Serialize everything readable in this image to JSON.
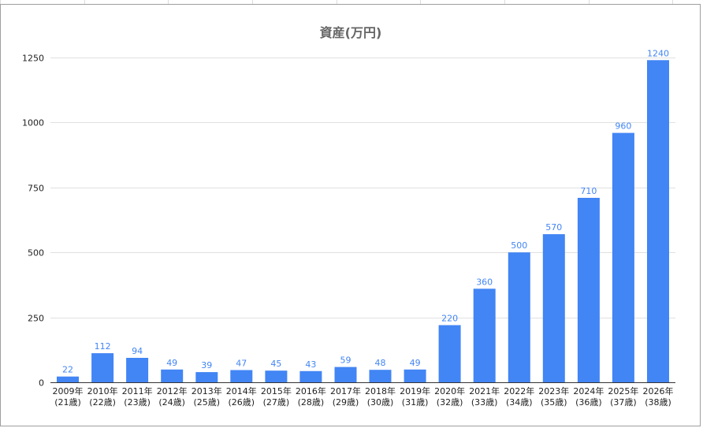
{
  "chart_data": {
    "type": "bar",
    "title": "資産(万円)",
    "xlabel": "",
    "ylabel": "",
    "ylim": [
      0,
      1250
    ],
    "yticks": [
      0,
      250,
      500,
      750,
      1000,
      1250
    ],
    "grid": true,
    "legend": "none",
    "bar_color": "#4285f4",
    "categories": [
      [
        "2009年",
        "(21歳)"
      ],
      [
        "2010年",
        "(22歳)"
      ],
      [
        "2011年",
        "(23歳)"
      ],
      [
        "2012年",
        "(24歳)"
      ],
      [
        "2013年",
        "(25歳)"
      ],
      [
        "2014年",
        "(26歳)"
      ],
      [
        "2015年",
        "(27歳)"
      ],
      [
        "2016年",
        "(28歳)"
      ],
      [
        "2017年",
        "(29歳)"
      ],
      [
        "2018年",
        "(30歳)"
      ],
      [
        "2019年",
        "(31歳)"
      ],
      [
        "2020年",
        "(32歳)"
      ],
      [
        "2021年",
        "(33歳)"
      ],
      [
        "2022年",
        "(34歳)"
      ],
      [
        "2023年",
        "(35歳)"
      ],
      [
        "2024年",
        "(36歳)"
      ],
      [
        "2025年",
        "(37歳)"
      ],
      [
        "2026年",
        "(38歳)"
      ]
    ],
    "values": [
      22,
      112,
      94,
      49,
      39,
      47,
      45,
      43,
      59,
      48,
      49,
      220,
      360,
      500,
      570,
      710,
      960,
      1240
    ]
  }
}
